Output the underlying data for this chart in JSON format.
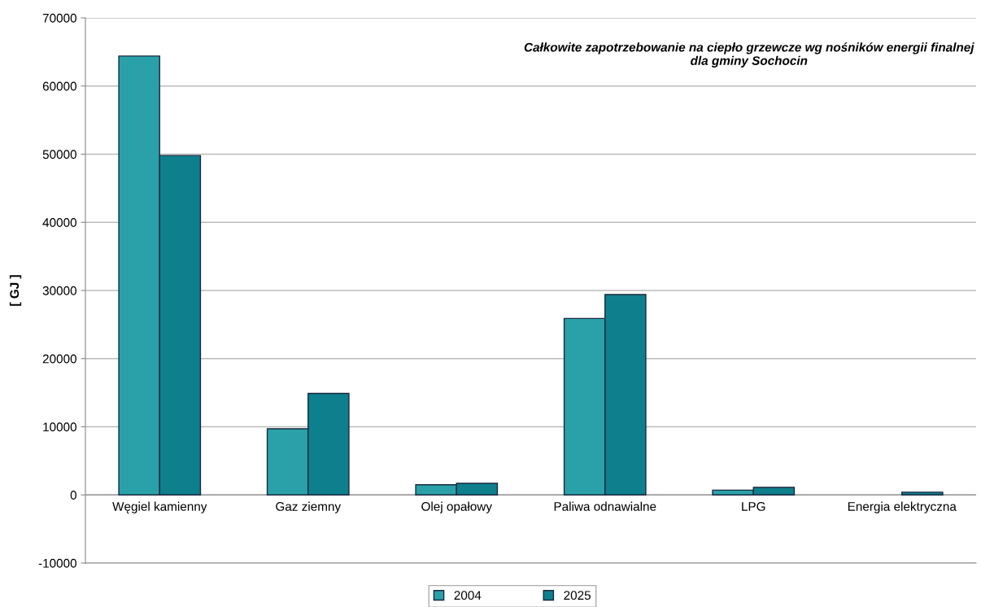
{
  "chart_data": {
    "type": "bar",
    "title": "Całkowite zapotrzebowanie na ciepło grzewcze wg nośników energii finalnej\ndla gminy Sochocin",
    "ylabel": "[ GJ ]",
    "categories": [
      "Węgiel kamienny",
      "Gaz ziemny",
      "Olej opałowy",
      "Paliwa odnawialne",
      "LPG",
      "Energia elektryczna"
    ],
    "series": [
      {
        "name": "2004",
        "color": "#2aa1a8",
        "values": [
          64400,
          9700,
          1500,
          25900,
          700,
          null
        ]
      },
      {
        "name": "2025",
        "color": "#0e7f8c",
        "values": [
          49800,
          14900,
          1700,
          29400,
          1100,
          400
        ]
      }
    ],
    "ylim": [
      -10000,
      70000
    ],
    "yticks": [
      -10000,
      0,
      10000,
      20000,
      30000,
      40000,
      50000,
      60000,
      70000
    ],
    "grid": "y",
    "legend": "bottom"
  }
}
